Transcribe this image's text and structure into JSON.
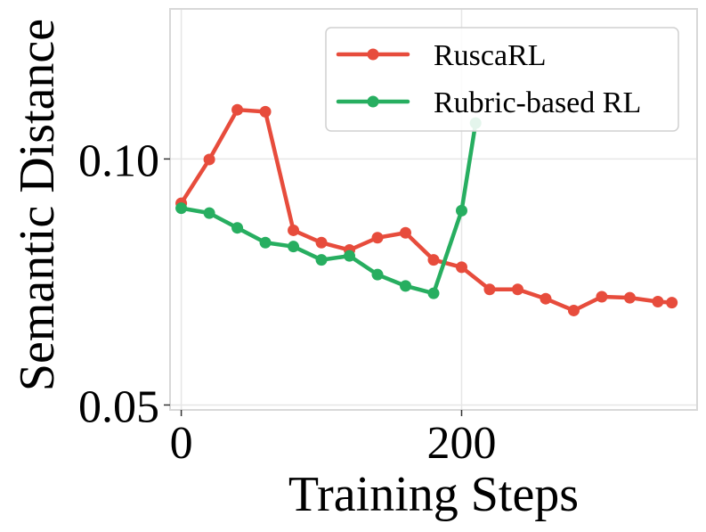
{
  "chart_data": {
    "type": "line",
    "xlabel": "Training Steps",
    "ylabel": "Semantic Distance",
    "xlim": [
      -8,
      368
    ],
    "ylim": [
      0.049,
      0.1305
    ],
    "x_ticks": [
      {
        "value": 0,
        "label": "0"
      },
      {
        "value": 200,
        "label": "200"
      }
    ],
    "y_ticks": [
      {
        "value": 0.05,
        "label": "0.05"
      },
      {
        "value": 0.1,
        "label": "0.10"
      }
    ],
    "grid": true,
    "legend_position": "top-right",
    "series": [
      {
        "name": "RuscaRL",
        "color": "#e74c3c",
        "x": [
          0,
          20,
          40,
          60,
          80,
          100,
          120,
          140,
          160,
          180,
          200,
          220,
          240,
          260,
          280,
          300,
          320,
          340,
          350
        ],
        "y": [
          0.091,
          0.0999,
          0.11,
          0.1096,
          0.0855,
          0.083,
          0.0815,
          0.084,
          0.085,
          0.0795,
          0.078,
          0.0735,
          0.0735,
          0.0716,
          0.0692,
          0.072,
          0.0718,
          0.071,
          0.0708
        ]
      },
      {
        "name": "Rubric-based RL",
        "color": "#27ae60",
        "x": [
          0,
          20,
          40,
          60,
          80,
          100,
          120,
          140,
          160,
          180,
          200,
          210
        ],
        "y": [
          0.09,
          0.089,
          0.086,
          0.083,
          0.0822,
          0.0795,
          0.0803,
          0.0765,
          0.0742,
          0.0727,
          0.0895,
          0.1073
        ]
      }
    ]
  }
}
